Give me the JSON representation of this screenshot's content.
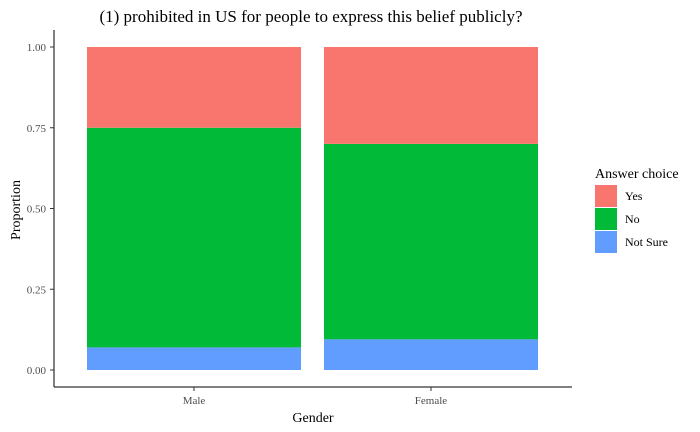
{
  "chart_data": {
    "type": "bar",
    "stacked": true,
    "title": "(1) prohibited in US for people to express this belief publicly?",
    "xlabel": "Gender",
    "ylabel": "Proportion",
    "ylim": [
      0,
      1
    ],
    "yticks": [
      "0.00",
      "0.25",
      "0.50",
      "0.75",
      "1.00"
    ],
    "categories": [
      "Male",
      "Female"
    ],
    "series": [
      {
        "name": "Not Sure",
        "values": [
          0.07,
          0.095
        ],
        "color": "#619CFF"
      },
      {
        "name": "No",
        "values": [
          0.68,
          0.605
        ],
        "color": "#00BA38"
      },
      {
        "name": "Yes",
        "values": [
          0.25,
          0.3
        ],
        "color": "#F8766D"
      }
    ],
    "legend": {
      "title": "Answer choice",
      "position": "right",
      "entries": [
        "Yes",
        "No",
        "Not Sure"
      ]
    },
    "grid": false
  }
}
